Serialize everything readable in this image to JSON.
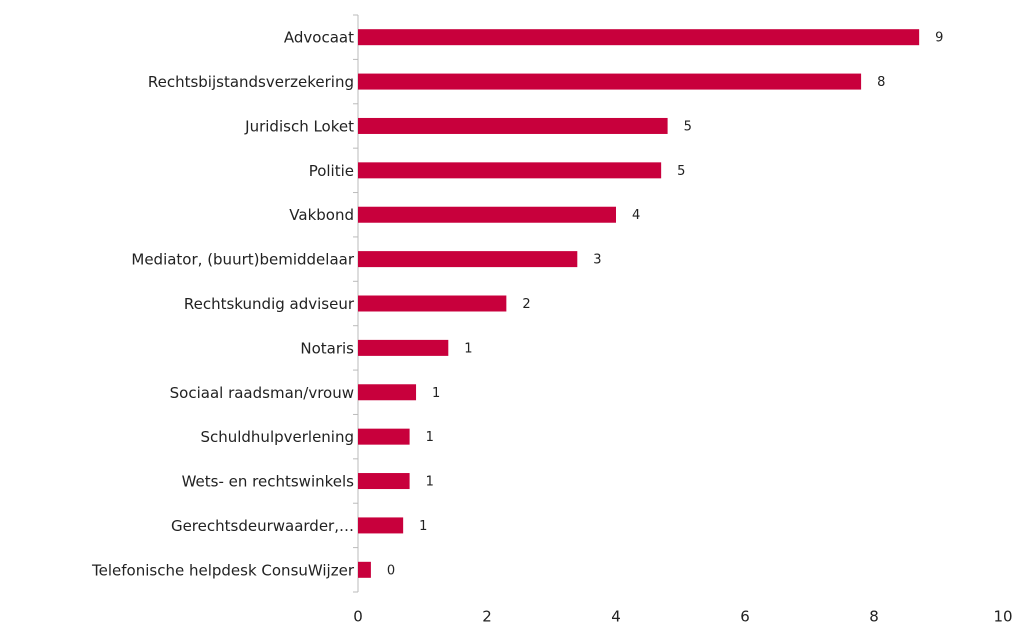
{
  "chart_data": {
    "type": "hbar",
    "categories": [
      "Advocaat",
      "Rechtsbijstandsverzekering",
      "Juridisch Loket",
      "Politie",
      "Vakbond",
      "Mediator, (buurt)bemiddelaar",
      "Rechtskundig adviseur",
      "Notaris",
      "Sociaal raadsman/vrouw",
      "Schuldhulpverlening",
      "Wets- en rechtswinkels",
      "Gerechtsdeurwaarder,…",
      "Telefonische helpdesk ConsuWijzer"
    ],
    "values": [
      8.7,
      7.8,
      4.8,
      4.7,
      4.0,
      3.4,
      2.3,
      1.4,
      0.9,
      0.8,
      0.8,
      0.7,
      0.2
    ],
    "value_labels": [
      "9",
      "8",
      "5",
      "5",
      "4",
      "3",
      "2",
      "1",
      "1",
      "1",
      "1",
      "1",
      "0"
    ],
    "color": "#c8003c",
    "xlim": [
      0,
      10
    ],
    "xticks": [
      0,
      2,
      4,
      6,
      8,
      10
    ]
  }
}
